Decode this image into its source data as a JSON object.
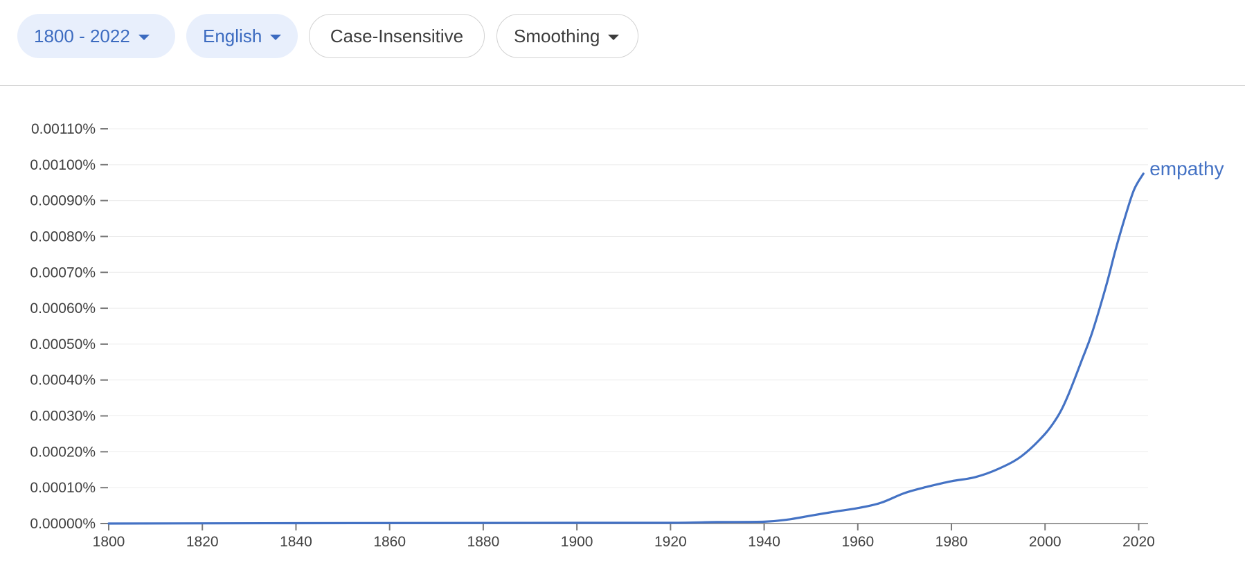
{
  "toolbar": {
    "range_label": "1800 - 2022",
    "corpus_label": "English",
    "case_label": "Case-Insensitive",
    "smoothing_label": "Smoothing"
  },
  "icons": {
    "dropdown": "chevron-down-icon"
  },
  "colors": {
    "accent": "#3c6bc0",
    "chip_bg": "#e8effc",
    "line": "#4472c4"
  },
  "chart_data": {
    "type": "line",
    "title": "",
    "xlabel": "",
    "ylabel": "",
    "xlim": [
      1800,
      2022
    ],
    "ylim": [
      0,
      0.0011
    ],
    "grid": true,
    "x_ticks": [
      1800,
      1820,
      1840,
      1860,
      1880,
      1900,
      1920,
      1940,
      1960,
      1980,
      2000,
      2020
    ],
    "x_tick_labels": [
      "1800",
      "1820",
      "1840",
      "1860",
      "1880",
      "1900",
      "1920",
      "1940",
      "1960",
      "1980",
      "2000",
      "2020"
    ],
    "y_ticks": [
      0,
      0.0001,
      0.0002,
      0.0003,
      0.0004,
      0.0005,
      0.0006,
      0.0007,
      0.0008,
      0.0009,
      0.001,
      0.0011
    ],
    "y_tick_labels": [
      "0.00000%",
      "0.00010%",
      "0.00020%",
      "0.00030%",
      "0.00040%",
      "0.00050%",
      "0.00060%",
      "0.00070%",
      "0.00080%",
      "0.00090%",
      "0.00100%",
      "0.00110%"
    ],
    "series": [
      {
        "name": "empathy",
        "x": [
          1800,
          1840,
          1900,
          1920,
          1930,
          1940,
          1945,
          1950,
          1955,
          1960,
          1965,
          1970,
          1975,
          1980,
          1985,
          1990,
          1995,
          2000,
          2003,
          2005,
          2008,
          2010,
          2013,
          2015,
          2017,
          2019,
          2021
        ],
        "values": [
          0,
          1e-06,
          2e-06,
          2e-06,
          4e-06,
          5e-06,
          1.1e-05,
          2.2e-05,
          3.3e-05,
          4.3e-05,
          5.8e-05,
          8.5e-05,
          0.000103,
          0.000118,
          0.000129,
          0.000152,
          0.000188,
          0.00025,
          0.000305,
          0.00036,
          0.00046,
          0.00053,
          0.00066,
          0.00076,
          0.00085,
          0.00093,
          0.000975
        ]
      }
    ]
  }
}
